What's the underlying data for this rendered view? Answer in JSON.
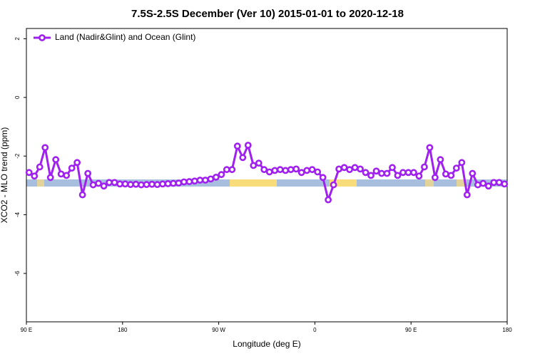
{
  "chart_data": {
    "type": "line",
    "title": "7.5S-2.5S December (Ver 10)   2015-01-01 to 2020-12-18",
    "x_label": "Longitude (deg E)",
    "y_label": "XCO2 - MLO trend (ppm)",
    "xlim": [
      90,
      540
    ],
    "xticks": [
      {
        "value": 90,
        "label": "90 E"
      },
      180,
      {
        "value": 270,
        "label": "90 W"
      },
      {
        "value": 360,
        "label": "0"
      },
      {
        "value": 450,
        "label": "90 E"
      },
      {
        "value": 540,
        "label": "180"
      }
    ],
    "ylim": [
      -7.65,
      2.35
    ],
    "yticks": [
      2,
      0,
      -2,
      -4,
      -6
    ],
    "legend": "top-left",
    "x": [
      92.5,
      97.5,
      102.5,
      107.5,
      112.5,
      117.5,
      122.5,
      127.5,
      132.5,
      137.5,
      142.5,
      147.5,
      152.5,
      157.5,
      162.5,
      167.5,
      172.5,
      177.5,
      182.5,
      187.5,
      192.5,
      197.5,
      202.5,
      207.5,
      212.5,
      217.5,
      222.5,
      227.5,
      232.5,
      237.5,
      242.5,
      247.5,
      252.5,
      257.5,
      262.5,
      267.5,
      272.5,
      277.5,
      282.5,
      287.5,
      292.5,
      297.5,
      302.5,
      307.5,
      312.5,
      317.5,
      322.5,
      327.5,
      332.5,
      337.5,
      342.5,
      347.5,
      352.5,
      357.5,
      362.5,
      367.5,
      372.5,
      377.5,
      382.5,
      387.5,
      392.5,
      397.5,
      402.5,
      407.5,
      412.5,
      417.5,
      422.5,
      427.5,
      432.5,
      437.5,
      442.5,
      447.5,
      452.5,
      457.5,
      462.5,
      467.5,
      472.5,
      477.5,
      482.5,
      487.5,
      492.5,
      497.5,
      502.5,
      507.5,
      512.5,
      517.5,
      522.5,
      527.5,
      532.5,
      537.5
    ],
    "series": [
      {
        "name": "Land (Nadir&Glint) and Ocean (Glint)",
        "color": "#a020f0",
        "values": [
          -2.56,
          -2.68,
          -2.37,
          -1.71,
          -2.73,
          -2.12,
          -2.61,
          -2.66,
          -2.41,
          -2.22,
          -3.32,
          -2.59,
          -2.98,
          -2.93,
          -3.02,
          -2.9,
          -2.9,
          -2.95,
          -2.95,
          -2.97,
          -2.96,
          -2.98,
          -2.97,
          -2.96,
          -2.97,
          -2.95,
          -2.94,
          -2.93,
          -2.92,
          -2.88,
          -2.87,
          -2.85,
          -2.82,
          -2.82,
          -2.78,
          -2.72,
          -2.63,
          -2.46,
          -2.46,
          -1.66,
          -2.05,
          -1.63,
          -2.32,
          -2.24,
          -2.46,
          -2.54,
          -2.49,
          -2.46,
          -2.49,
          -2.46,
          -2.44,
          -2.56,
          -2.49,
          -2.46,
          -2.54,
          -2.73,
          -3.49,
          -2.98,
          -2.44,
          -2.39,
          -2.46,
          -2.39,
          -2.44,
          -2.56,
          -2.66,
          -2.51,
          -2.59,
          -2.59,
          -2.39,
          -2.66,
          -2.56,
          -2.56,
          -2.56,
          -2.68,
          -2.37,
          -1.71,
          -2.73,
          -2.12,
          -2.61,
          -2.66,
          -2.41,
          -2.22,
          -3.32,
          -2.59,
          -2.98,
          -2.93,
          -3.02,
          -2.9,
          -2.9,
          -2.95
        ]
      }
    ]
  }
}
